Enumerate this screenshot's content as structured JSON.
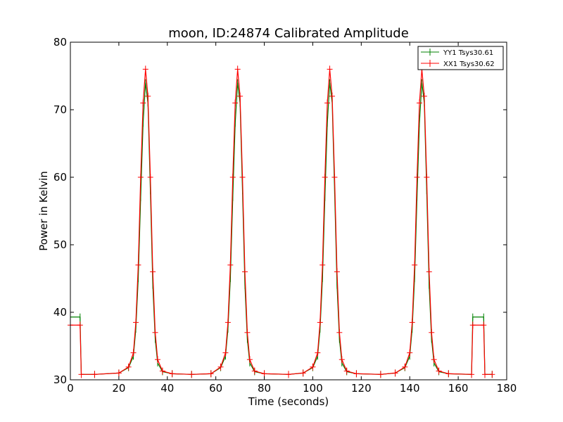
{
  "chart_data": {
    "type": "line",
    "title": "moon, ID:24874 Calibrated Amplitude",
    "xlabel": "Time (seconds)",
    "ylabel": "Power in Kelvin",
    "xlim": [
      0,
      180
    ],
    "ylim": [
      30,
      80
    ],
    "xticks": [
      "0",
      "20",
      "40",
      "60",
      "80",
      "100",
      "120",
      "140",
      "160",
      "180"
    ],
    "yticks": [
      "30",
      "40",
      "50",
      "60",
      "70",
      "80"
    ],
    "grid": false,
    "legend_position": "top-right",
    "series": [
      {
        "name": "YY1 Tsys30.61",
        "color": "#008000",
        "marker": "vertical-tick",
        "x": [
          0,
          4.0,
          4.5,
          10,
          20,
          24,
          26,
          27,
          28,
          29,
          30,
          31,
          32,
          33,
          34,
          35,
          36,
          38,
          42,
          50,
          58,
          62,
          64,
          65,
          66,
          67,
          68,
          69,
          70,
          71,
          72,
          73,
          74,
          76,
          80,
          90,
          96,
          100,
          102,
          103,
          104,
          105,
          106,
          107,
          108,
          109,
          110,
          111,
          112,
          114,
          118,
          128,
          134,
          138,
          140,
          141,
          142,
          143,
          144,
          145,
          146,
          147,
          148,
          149,
          150,
          152,
          156,
          165.5,
          166,
          170.5,
          171,
          174
        ],
        "values": [
          39.3,
          39.3,
          30.8,
          30.8,
          31.0,
          31.8,
          33.5,
          37.5,
          45.0,
          57.0,
          68.0,
          74.0,
          71.0,
          58.0,
          44.0,
          36.0,
          32.5,
          31.2,
          30.9,
          30.8,
          30.9,
          31.8,
          33.5,
          37.5,
          45.0,
          57.0,
          68.0,
          74.0,
          71.0,
          58.0,
          44.0,
          36.0,
          32.5,
          31.2,
          30.9,
          30.8,
          31.0,
          31.8,
          33.5,
          37.5,
          45.0,
          57.0,
          68.0,
          74.0,
          71.0,
          58.0,
          44.0,
          36.0,
          32.5,
          31.2,
          30.9,
          30.8,
          31.0,
          31.8,
          33.5,
          37.5,
          45.0,
          57.0,
          68.0,
          74.0,
          71.0,
          58.0,
          44.0,
          36.0,
          32.5,
          31.2,
          30.9,
          30.8,
          39.3,
          39.3,
          30.8,
          30.8
        ]
      },
      {
        "name": "XX1 Tsys30.62",
        "color": "#ff0000",
        "marker": "cross",
        "x": [
          0,
          4.0,
          4.5,
          10,
          20,
          24,
          26,
          27,
          28,
          29,
          30,
          31,
          32,
          33,
          34,
          35,
          36,
          38,
          42,
          50,
          58,
          62,
          64,
          65,
          66,
          67,
          68,
          69,
          70,
          71,
          72,
          73,
          74,
          76,
          80,
          90,
          96,
          100,
          102,
          103,
          104,
          105,
          106,
          107,
          108,
          109,
          110,
          111,
          112,
          114,
          118,
          128,
          134,
          138,
          140,
          141,
          142,
          143,
          144,
          145,
          146,
          147,
          148,
          149,
          150,
          152,
          156,
          165.5,
          166,
          170.5,
          171,
          174
        ],
        "values": [
          38.1,
          38.1,
          30.8,
          30.8,
          31.0,
          31.9,
          34.0,
          38.5,
          47.0,
          60.0,
          71.0,
          76.0,
          72.0,
          60.0,
          46.0,
          37.0,
          33.0,
          31.3,
          30.9,
          30.8,
          30.9,
          31.9,
          34.0,
          38.5,
          47.0,
          60.0,
          71.0,
          76.0,
          72.0,
          60.0,
          46.0,
          37.0,
          33.0,
          31.3,
          30.9,
          30.8,
          31.0,
          31.9,
          34.0,
          38.5,
          47.0,
          60.0,
          71.0,
          76.0,
          72.0,
          60.0,
          46.0,
          37.0,
          33.0,
          31.3,
          30.9,
          30.8,
          31.0,
          31.9,
          34.0,
          38.5,
          47.0,
          60.0,
          71.0,
          76.0,
          72.0,
          60.0,
          46.0,
          37.0,
          33.0,
          31.3,
          30.9,
          30.8,
          38.1,
          38.1,
          30.8,
          30.8
        ]
      }
    ]
  }
}
